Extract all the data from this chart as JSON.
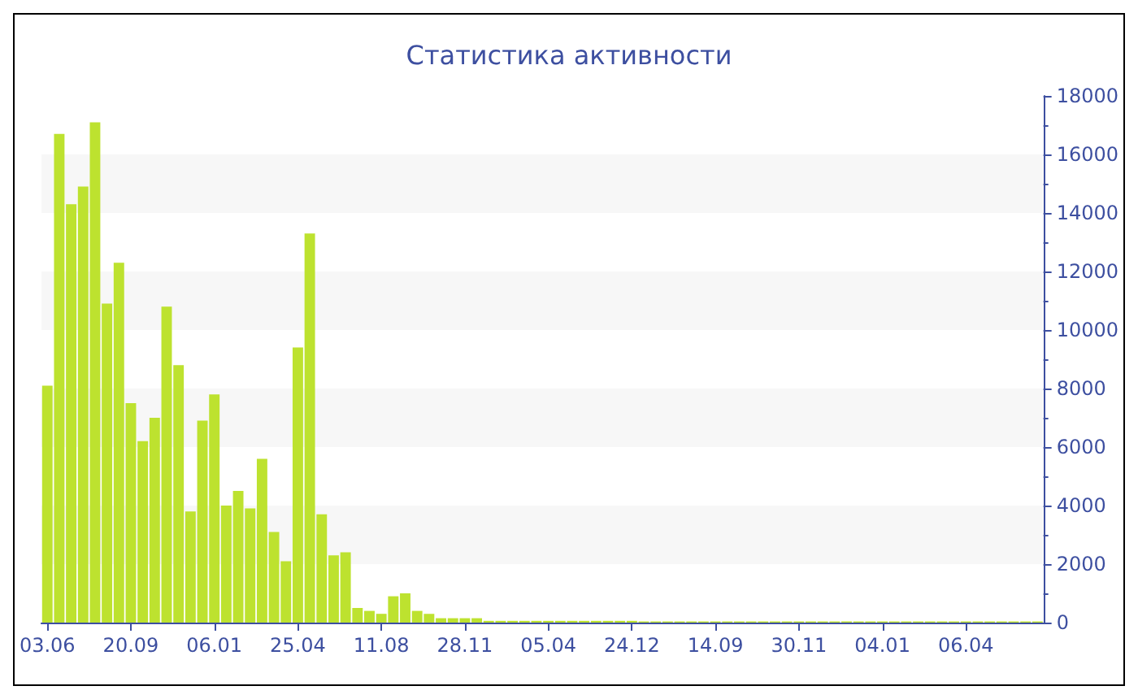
{
  "chart_data": {
    "type": "bar",
    "title": "Статистика активности",
    "categories": [
      "03.06",
      null,
      null,
      null,
      null,
      null,
      null,
      "20.09",
      null,
      null,
      null,
      null,
      null,
      null,
      "06.01",
      null,
      null,
      null,
      null,
      null,
      null,
      "25.04",
      null,
      null,
      null,
      null,
      null,
      null,
      "11.08",
      null,
      null,
      null,
      null,
      null,
      null,
      "28.11",
      null,
      null,
      null,
      null,
      null,
      null,
      "05.04",
      null,
      null,
      null,
      null,
      null,
      null,
      "24.12",
      null,
      null,
      null,
      null,
      null,
      null,
      "14.09",
      null,
      null,
      null,
      null,
      null,
      null,
      "30.11",
      null,
      null,
      null,
      null,
      null,
      null,
      "04.01",
      null,
      null,
      null,
      null,
      null,
      null,
      "06.04",
      null,
      null,
      null,
      null,
      null,
      null
    ],
    "values": [
      8100,
      16700,
      14300,
      14900,
      17100,
      10900,
      12300,
      7500,
      6200,
      7000,
      10800,
      8800,
      3800,
      6900,
      7800,
      4000,
      4500,
      3900,
      5600,
      3100,
      2100,
      9400,
      13300,
      3700,
      2300,
      2400,
      500,
      400,
      300,
      900,
      1000,
      400,
      300,
      150,
      150,
      150,
      150,
      60,
      60,
      60,
      60,
      60,
      60,
      60,
      60,
      60,
      60,
      60,
      60,
      60,
      40,
      40,
      40,
      40,
      40,
      40,
      40,
      40,
      40,
      40,
      40,
      40,
      40,
      40,
      40,
      40,
      40,
      40,
      40,
      40,
      40,
      40,
      40,
      40,
      40,
      40,
      40,
      40,
      40,
      40,
      40,
      40,
      40,
      40
    ],
    "color": "#bde22f",
    "ylim": [
      0,
      18000
    ],
    "yticks": [
      0,
      2000,
      4000,
      6000,
      8000,
      10000,
      12000,
      14000,
      16000,
      18000
    ],
    "grid": false
  }
}
